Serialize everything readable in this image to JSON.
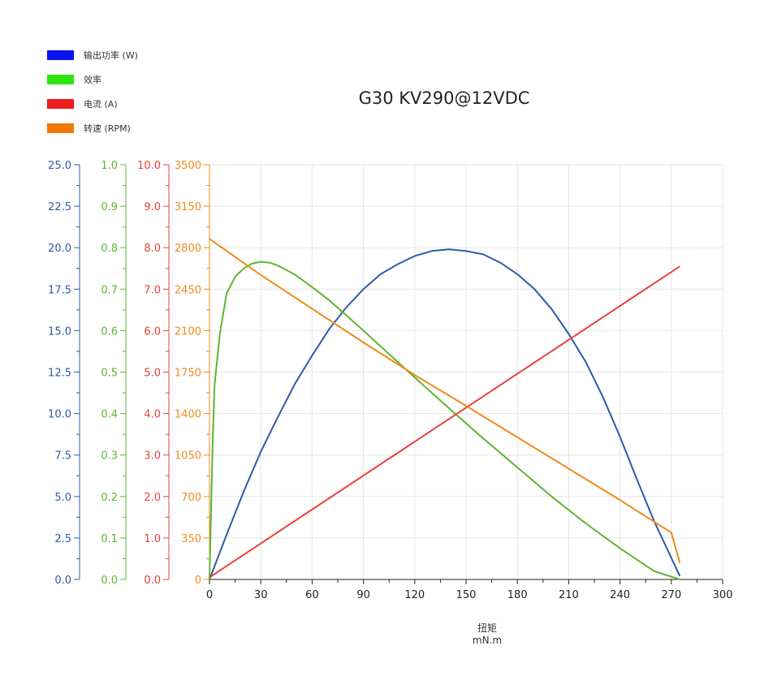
{
  "chart_data": {
    "type": "line",
    "title": "G30 KV290@12VDC",
    "xlabel": "扭矩",
    "xunit": "mN.m",
    "xlim": [
      0,
      300
    ],
    "xticks": [
      "0",
      "30",
      "60",
      "90",
      "120",
      "150",
      "180",
      "210",
      "240",
      "270",
      "300"
    ],
    "grid": true,
    "legend_position": "top-left",
    "axes": [
      {
        "id": "power",
        "color": "#2e5aa8",
        "ylim": [
          0,
          25
        ],
        "ticks": [
          "0.0",
          "2.5",
          "5.0",
          "7.5",
          "10.0",
          "12.5",
          "15.0",
          "17.5",
          "20.0",
          "22.5",
          "25.0"
        ]
      },
      {
        "id": "efficiency",
        "color": "#5cb531",
        "ylim": [
          0,
          1
        ],
        "ticks": [
          "0.0",
          "0.1",
          "0.2",
          "0.3",
          "0.4",
          "0.5",
          "0.6",
          "0.7",
          "0.8",
          "0.9",
          "1.0"
        ]
      },
      {
        "id": "current",
        "color": "#e8413a",
        "ylim": [
          0,
          10
        ],
        "ticks": [
          "0.0",
          "1.0",
          "2.0",
          "3.0",
          "4.0",
          "5.0",
          "6.0",
          "7.0",
          "8.0",
          "9.0",
          "10.0"
        ]
      },
      {
        "id": "speed",
        "color": "#f08a1c",
        "ylim": [
          0,
          3500
        ],
        "ticks": [
          "0",
          "350",
          "700",
          "1050",
          "1400",
          "1750",
          "2100",
          "2450",
          "2800",
          "3150",
          "3500"
        ]
      }
    ],
    "series": [
      {
        "name": "输出功率 (W)",
        "axis": "power",
        "color": "#2e5aa8",
        "swatch": "#0a14f0",
        "x": [
          0,
          10,
          20,
          30,
          40,
          50,
          60,
          70,
          80,
          90,
          100,
          110,
          120,
          130,
          140,
          150,
          160,
          170,
          180,
          190,
          200,
          210,
          220,
          230,
          240,
          250,
          260,
          270,
          275
        ],
        "y": [
          0,
          2.7,
          5.3,
          7.7,
          9.8,
          11.8,
          13.5,
          15.1,
          16.4,
          17.5,
          18.4,
          19.0,
          19.5,
          19.8,
          19.9,
          19.8,
          19.6,
          19.1,
          18.4,
          17.5,
          16.3,
          14.8,
          13.1,
          11.0,
          8.6,
          6.0,
          3.5,
          1.3,
          0.2
        ]
      },
      {
        "name": "效率",
        "axis": "efficiency",
        "color": "#5cb531",
        "swatch": "#2ee40f",
        "x": [
          0,
          1,
          2,
          3,
          6,
          10,
          15,
          20,
          25,
          30,
          35,
          40,
          50,
          60,
          70,
          80,
          90,
          100,
          120,
          140,
          160,
          180,
          200,
          220,
          240,
          260,
          275
        ],
        "y": [
          0,
          0.18,
          0.35,
          0.47,
          0.59,
          0.69,
          0.73,
          0.75,
          0.762,
          0.766,
          0.764,
          0.757,
          0.735,
          0.705,
          0.673,
          0.637,
          0.6,
          0.562,
          0.487,
          0.413,
          0.34,
          0.27,
          0.2,
          0.135,
          0.075,
          0.02,
          0.0
        ]
      },
      {
        "name": "电流 (A)",
        "axis": "current",
        "color": "#e8413a",
        "swatch": "#ea1c1c",
        "x": [
          0,
          275
        ],
        "y": [
          0.05,
          7.55
        ]
      },
      {
        "name": "转速 (RPM)",
        "axis": "speed",
        "color": "#f08a1c",
        "swatch": "#f07a05",
        "x": [
          0,
          30,
          60,
          90,
          120,
          150,
          180,
          210,
          240,
          270,
          275
        ],
        "y": [
          2875,
          2570,
          2285,
          2000,
          1725,
          1465,
          1200,
          935,
          670,
          395,
          140
        ]
      }
    ]
  }
}
